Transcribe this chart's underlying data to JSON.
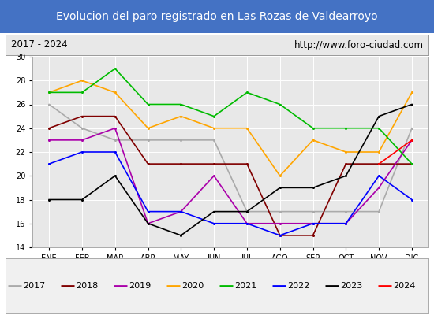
{
  "title": "Evolucion del paro registrado en Las Rozas de Valdearroyo",
  "subtitle_left": "2017 - 2024",
  "subtitle_right": "http://www.foro-ciudad.com",
  "months": [
    "ENE",
    "FEB",
    "MAR",
    "ABR",
    "MAY",
    "JUN",
    "JUL",
    "AGO",
    "SEP",
    "OCT",
    "NOV",
    "DIC"
  ],
  "ylim": [
    14,
    30
  ],
  "yticks": [
    14,
    16,
    18,
    20,
    22,
    24,
    26,
    28,
    30
  ],
  "series": {
    "2017": {
      "color": "#aaaaaa",
      "values": [
        26,
        24,
        23,
        23,
        23,
        23,
        17,
        17,
        17,
        17,
        17,
        24
      ]
    },
    "2018": {
      "color": "#800000",
      "values": [
        24,
        25,
        25,
        21,
        21,
        21,
        21,
        15,
        15,
        21,
        21,
        21
      ]
    },
    "2019": {
      "color": "#aa00aa",
      "values": [
        23,
        23,
        24,
        16,
        17,
        20,
        16,
        16,
        16,
        16,
        19,
        23
      ]
    },
    "2020": {
      "color": "#ffa500",
      "values": [
        27,
        28,
        27,
        24,
        25,
        24,
        24,
        20,
        23,
        22,
        22,
        27
      ]
    },
    "2021": {
      "color": "#00bb00",
      "values": [
        27,
        27,
        29,
        26,
        26,
        25,
        27,
        26,
        24,
        24,
        24,
        21
      ]
    },
    "2022": {
      "color": "#0000ff",
      "values": [
        21,
        22,
        22,
        17,
        17,
        16,
        16,
        15,
        16,
        16,
        20,
        18
      ]
    },
    "2023": {
      "color": "#000000",
      "values": [
        18,
        18,
        20,
        16,
        15,
        17,
        17,
        19,
        19,
        20,
        25,
        26
      ]
    },
    "2024": {
      "color": "#ff0000",
      "values": [
        null,
        null,
        null,
        null,
        null,
        null,
        null,
        null,
        null,
        null,
        21,
        23
      ]
    }
  },
  "title_bg_color": "#4472c4",
  "title_fg_color": "#ffffff",
  "subtitle_bg_color": "#e8e8e8",
  "plot_bg_color": "#e8e8e8",
  "legend_bg_color": "#f0f0f0",
  "year_order": [
    "2017",
    "2018",
    "2019",
    "2020",
    "2021",
    "2022",
    "2023",
    "2024"
  ]
}
